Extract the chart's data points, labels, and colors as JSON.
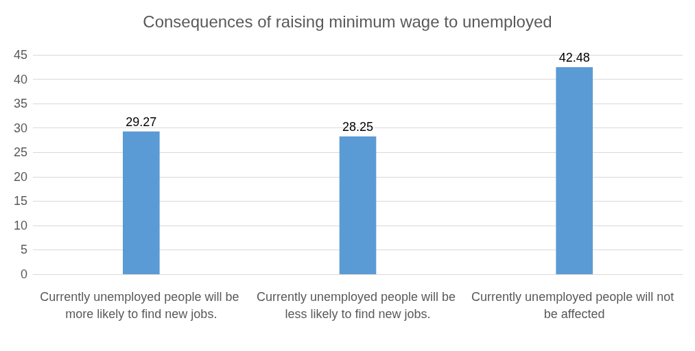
{
  "chart_data": {
    "type": "bar",
    "title": "Consequences of raising minimum wage to unemployed",
    "categories": [
      "Currently unemployed people will be more likely to find new jobs.",
      "Currently unemployed people will be less likely to find new jobs.",
      "Currently unemployed people will not be affected"
    ],
    "values": [
      29.27,
      28.25,
      42.48
    ],
    "color": "#5b9bd5",
    "ylim": [
      0,
      45
    ],
    "yticks": [
      0,
      5,
      10,
      15,
      20,
      25,
      30,
      35,
      40,
      45
    ],
    "grid": "y",
    "data_labels": true
  }
}
